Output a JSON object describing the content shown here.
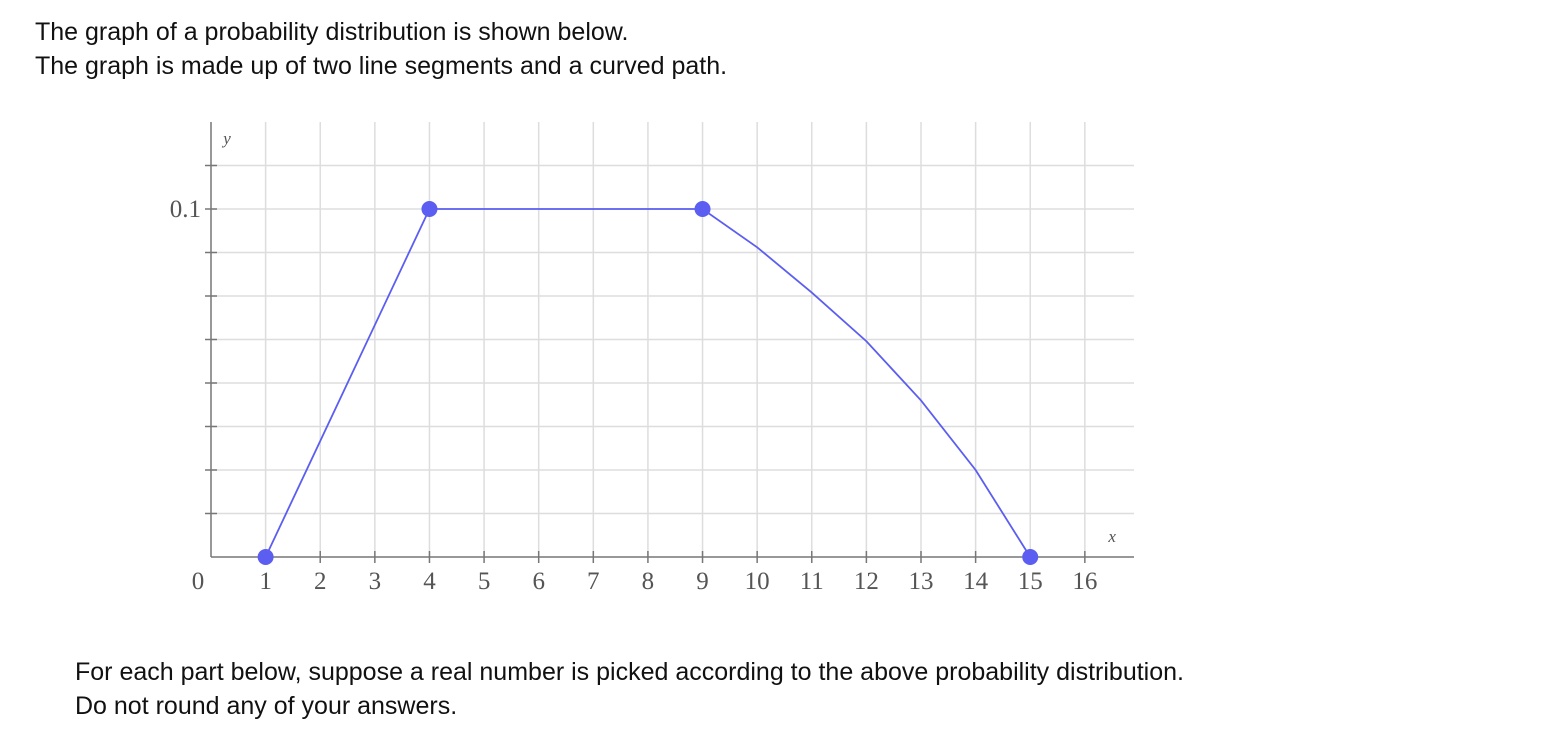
{
  "intro": [
    "The graph of a probability distribution is shown below.",
    "The graph is made up of two line segments and a curved path."
  ],
  "chart_data": {
    "type": "line",
    "x_label": "x",
    "y_label": "y",
    "xlim": [
      0,
      16.9
    ],
    "ylim": [
      0,
      0.125
    ],
    "xticks": [
      0,
      1,
      2,
      3,
      4,
      5,
      6,
      7,
      8,
      9,
      10,
      11,
      12,
      13,
      14,
      15,
      16
    ],
    "yticks": [
      0.1
    ],
    "y_minor_ticks": [
      0.0125,
      0.025,
      0.0375,
      0.05,
      0.0625,
      0.075,
      0.0875,
      0.1125
    ],
    "grid": true,
    "series": [
      {
        "style": "line",
        "color": "#5b5ef0",
        "x": [
          1,
          4,
          9,
          10,
          11,
          12,
          13,
          14,
          15
        ],
        "y": [
          0,
          0.1,
          0.1,
          0.089,
          0.076,
          0.062,
          0.045,
          0.025,
          0
        ]
      },
      {
        "style": "markers",
        "color": "#5b5ef0",
        "x": [
          1,
          4,
          9,
          15
        ],
        "y": [
          0,
          0.1,
          0.1,
          0
        ]
      }
    ]
  },
  "outro": [
    "For each part below, suppose a real number is picked according to the above probability distribution.",
    "Do not round any of your answers."
  ]
}
